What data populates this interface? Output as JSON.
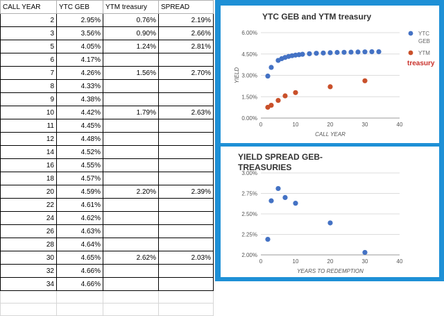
{
  "sheet": {
    "headers": [
      "CALL YEAR",
      "YTC GEB",
      "YTM treasury",
      "SPREAD"
    ],
    "rows": [
      [
        "2",
        "2.95%",
        "0.76%",
        "2.19%"
      ],
      [
        "3",
        "3.56%",
        "0.90%",
        "2.66%"
      ],
      [
        "5",
        "4.05%",
        "1.24%",
        "2.81%"
      ],
      [
        "6",
        "4.17%",
        "",
        ""
      ],
      [
        "7",
        "4.26%",
        "1.56%",
        "2.70%"
      ],
      [
        "8",
        "4.33%",
        "",
        ""
      ],
      [
        "9",
        "4.38%",
        "",
        ""
      ],
      [
        "10",
        "4.42%",
        "1.79%",
        "2.63%"
      ],
      [
        "11",
        "4.45%",
        "",
        ""
      ],
      [
        "12",
        "4.48%",
        "",
        ""
      ],
      [
        "14",
        "4.52%",
        "",
        ""
      ],
      [
        "16",
        "4.55%",
        "",
        ""
      ],
      [
        "18",
        "4.57%",
        "",
        ""
      ],
      [
        "20",
        "4.59%",
        "2.20%",
        "2.39%"
      ],
      [
        "22",
        "4.61%",
        "",
        ""
      ],
      [
        "24",
        "4.62%",
        "",
        ""
      ],
      [
        "26",
        "4.63%",
        "",
        ""
      ],
      [
        "28",
        "4.64%",
        "",
        ""
      ],
      [
        "30",
        "4.65%",
        "2.62%",
        "2.03%"
      ],
      [
        "32",
        "4.66%",
        "",
        ""
      ],
      [
        "34",
        "4.66%",
        "",
        ""
      ]
    ]
  },
  "charts": {
    "frame_color": "#1e90d6"
  },
  "chart_data": [
    {
      "type": "scatter",
      "title": "YTC GEB and YTM treasury",
      "xlabel": "CALL YEAR",
      "ylabel": "YIELD",
      "xlim": [
        0,
        40
      ],
      "ylim": [
        0,
        6
      ],
      "xticks": [
        "0",
        "10",
        "20",
        "30",
        "40"
      ],
      "yticks": [
        "0.00%",
        "1.50%",
        "3.00%",
        "4.50%",
        "6.00%"
      ],
      "grid": true,
      "legend": "right",
      "series": [
        {
          "name": "YTC GEB",
          "color": "#4472c4",
          "x": [
            2,
            3,
            5,
            6,
            7,
            8,
            9,
            10,
            11,
            12,
            14,
            16,
            18,
            20,
            22,
            24,
            26,
            28,
            30,
            32,
            34
          ],
          "y": [
            2.95,
            3.56,
            4.05,
            4.17,
            4.26,
            4.33,
            4.38,
            4.42,
            4.45,
            4.48,
            4.52,
            4.55,
            4.57,
            4.59,
            4.61,
            4.62,
            4.63,
            4.64,
            4.65,
            4.66,
            4.66
          ]
        },
        {
          "name": "YTM treasury",
          "color": "#c9502a",
          "x": [
            2,
            3,
            5,
            7,
            10,
            20,
            30
          ],
          "y": [
            0.76,
            0.9,
            1.24,
            1.56,
            1.79,
            2.2,
            2.62
          ]
        }
      ]
    },
    {
      "type": "scatter",
      "title": "YIELD SPREAD GEB-TREASURIES",
      "xlabel": "YEARS TO REDEMPTION",
      "ylabel": "",
      "xlim": [
        0,
        40
      ],
      "ylim": [
        2.0,
        3.0
      ],
      "xticks": [
        "0",
        "10",
        "20",
        "30",
        "40"
      ],
      "yticks": [
        "2.00%",
        "2.25%",
        "2.50%",
        "2.75%",
        "3.00%"
      ],
      "grid": true,
      "series": [
        {
          "color": "#4472c4",
          "x": [
            2,
            3,
            5,
            7,
            10,
            20,
            30
          ],
          "y": [
            2.19,
            2.66,
            2.81,
            2.7,
            2.63,
            2.39,
            2.03
          ]
        }
      ]
    }
  ]
}
